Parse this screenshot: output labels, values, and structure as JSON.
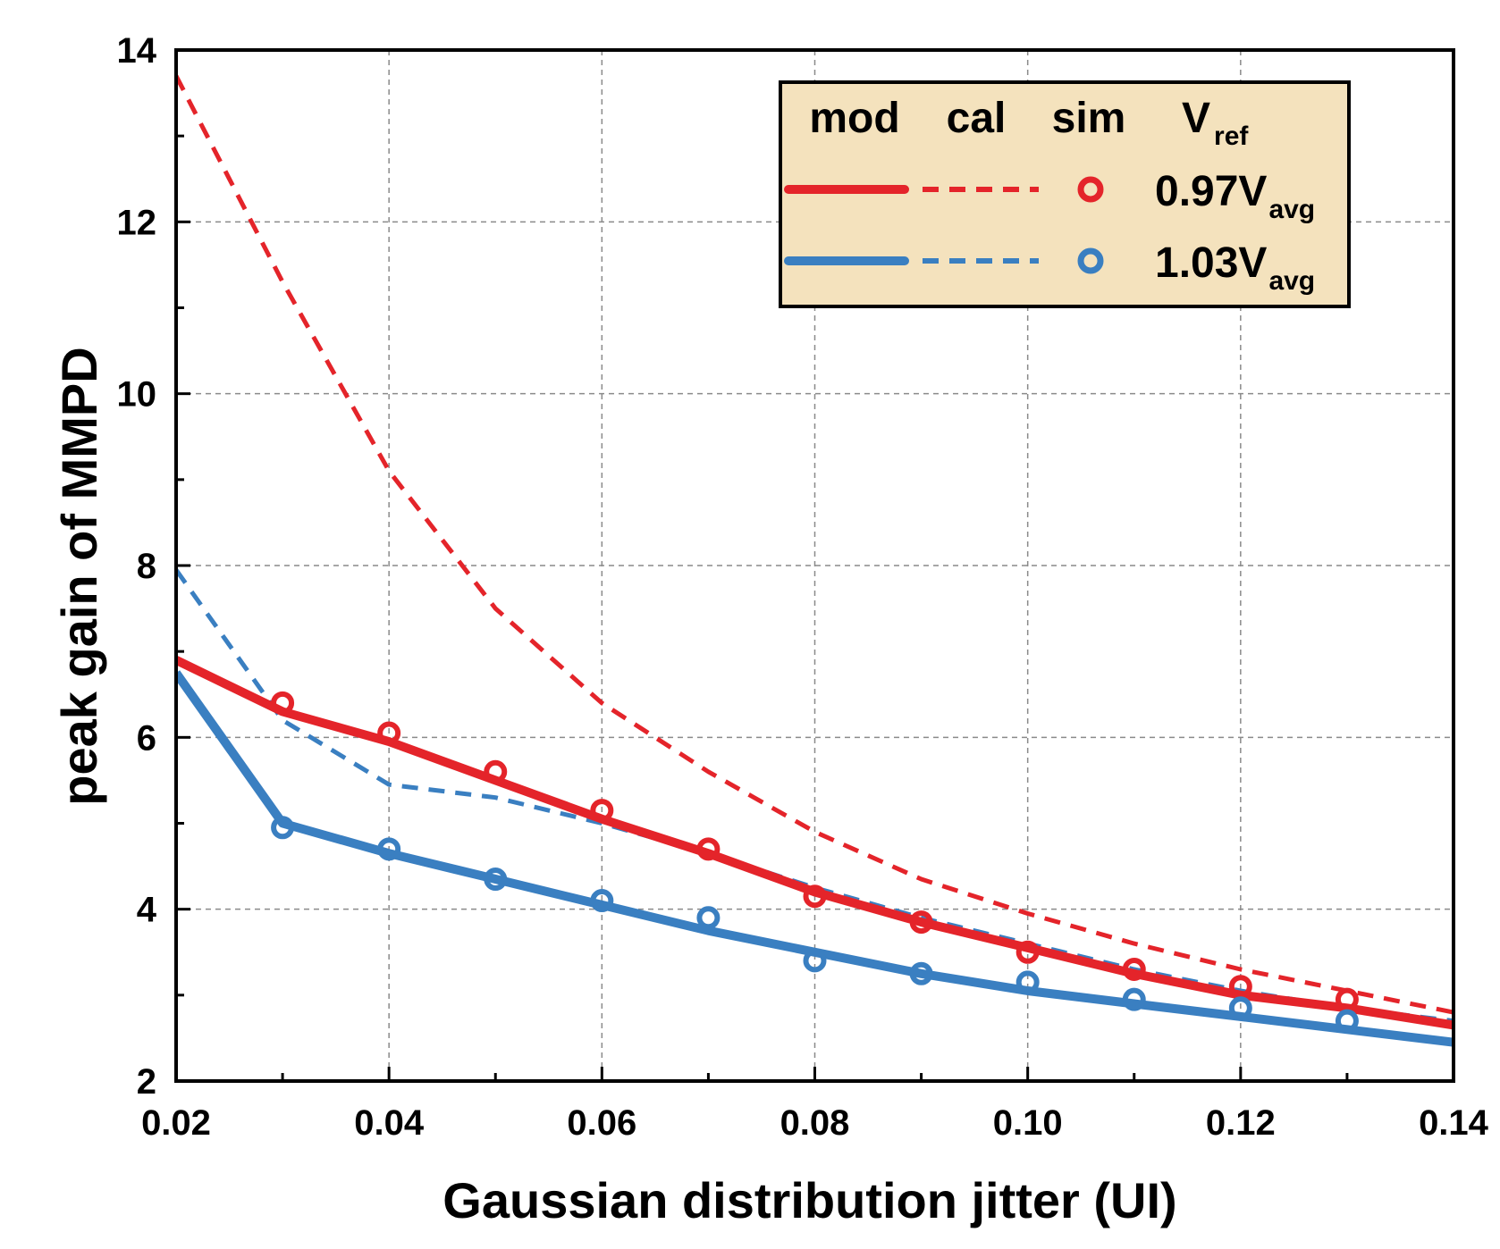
{
  "chart_data": {
    "type": "line",
    "xlabel": "Gaussian distribution jitter (UI)",
    "ylabel": "peak gain of MMPD",
    "xlim": [
      0.02,
      0.14
    ],
    "ylim": [
      2,
      14
    ],
    "x_ticks": [
      "0.02",
      "0.04",
      "0.06",
      "0.08",
      "0.10",
      "0.12",
      "0.14"
    ],
    "y_ticks": [
      "2",
      "4",
      "6",
      "8",
      "10",
      "12",
      "14"
    ],
    "grid": true,
    "legend": {
      "position": "top-right",
      "headers": {
        "mod": "mod",
        "cal": "cal",
        "sim": "sim",
        "vref_main": "V",
        "vref_sub": "ref"
      },
      "rows": [
        {
          "main": "0.97V",
          "sub": "avg",
          "color": "#e4242a"
        },
        {
          "main": "1.03V",
          "sub": "avg",
          "color": "#3a7fc1"
        }
      ]
    },
    "series": [
      {
        "name": "0.97Vavg mod",
        "style": "solid",
        "color": "#e4242a",
        "x": [
          0.02,
          0.03,
          0.04,
          0.05,
          0.06,
          0.07,
          0.08,
          0.09,
          0.1,
          0.11,
          0.12,
          0.13,
          0.14
        ],
        "y": [
          6.9,
          6.3,
          5.95,
          5.5,
          5.05,
          4.65,
          4.2,
          3.85,
          3.55,
          3.25,
          3.0,
          2.85,
          2.65
        ]
      },
      {
        "name": "0.97Vavg cal",
        "style": "dashed",
        "color": "#e4242a",
        "x": [
          0.02,
          0.03,
          0.04,
          0.05,
          0.06,
          0.07,
          0.08,
          0.09,
          0.1,
          0.11,
          0.12,
          0.13,
          0.14
        ],
        "y": [
          13.7,
          11.3,
          9.1,
          7.5,
          6.4,
          5.6,
          4.9,
          4.35,
          3.95,
          3.6,
          3.3,
          3.05,
          2.8
        ]
      },
      {
        "name": "0.97Vavg sim",
        "style": "marker",
        "color": "#e4242a",
        "x": [
          0.03,
          0.04,
          0.05,
          0.06,
          0.07,
          0.08,
          0.09,
          0.1,
          0.11,
          0.12,
          0.13
        ],
        "y": [
          6.4,
          6.05,
          5.6,
          5.15,
          4.7,
          4.15,
          3.85,
          3.5,
          3.3,
          3.1,
          2.95
        ]
      },
      {
        "name": "1.03Vavg mod",
        "style": "solid",
        "color": "#3a7fc1",
        "x": [
          0.02,
          0.03,
          0.04,
          0.05,
          0.06,
          0.07,
          0.08,
          0.09,
          0.1,
          0.11,
          0.12,
          0.13,
          0.14
        ],
        "y": [
          6.75,
          5.0,
          4.65,
          4.35,
          4.05,
          3.75,
          3.5,
          3.25,
          3.05,
          2.9,
          2.75,
          2.6,
          2.45
        ]
      },
      {
        "name": "1.03Vavg cal",
        "style": "dashed",
        "color": "#3a7fc1",
        "x": [
          0.02,
          0.03,
          0.04,
          0.05,
          0.06,
          0.07,
          0.08,
          0.09,
          0.1,
          0.11,
          0.12,
          0.13,
          0.14
        ],
        "y": [
          7.95,
          6.2,
          5.45,
          5.3,
          5.0,
          4.65,
          4.25,
          3.9,
          3.6,
          3.3,
          3.05,
          2.85,
          2.7
        ]
      },
      {
        "name": "1.03Vavg sim",
        "style": "marker",
        "color": "#3a7fc1",
        "x": [
          0.03,
          0.04,
          0.05,
          0.06,
          0.07,
          0.08,
          0.09,
          0.1,
          0.11,
          0.12,
          0.13
        ],
        "y": [
          4.95,
          4.7,
          4.35,
          4.1,
          3.9,
          3.4,
          3.25,
          3.15,
          2.95,
          2.85,
          2.7
        ]
      }
    ]
  }
}
